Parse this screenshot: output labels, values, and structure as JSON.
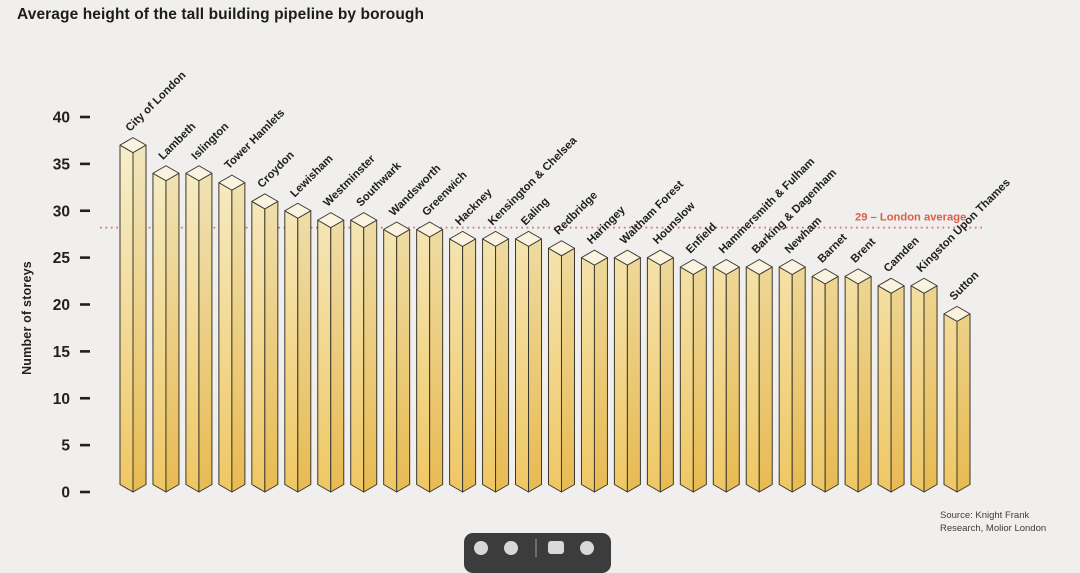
{
  "header": {
    "title": "Average height of the tall building pipeline by borough"
  },
  "chart_data": {
    "type": "bar",
    "style": "3d-column",
    "title": "Average height of the tall building pipeline by borough",
    "xlabel": "",
    "ylabel": "Number of storeys",
    "ylim": [
      0,
      40
    ],
    "yticks": [
      0,
      5,
      10,
      15,
      20,
      25,
      30,
      35,
      40
    ],
    "grid": false,
    "legend": false,
    "categories": [
      "City of London",
      "Lambeth",
      "Islington",
      "Tower Hamlets",
      "Croydon",
      "Lewisham",
      "Westminster",
      "Southwark",
      "Wandsworth",
      "Greenwich",
      "Hackney",
      "Kensington & Chelsea",
      "Ealing",
      "Redbridge",
      "Haringey",
      "Waltham Forest",
      "Hounslow",
      "Enfield",
      "Hammersmith & Fulham",
      "Barking & Dagenham",
      "Newham",
      "Barnet",
      "Brent",
      "Camden",
      "Kingston Upon Thames",
      "Sutton"
    ],
    "values": [
      37,
      34,
      34,
      33,
      31,
      30,
      29,
      29,
      28,
      28,
      27,
      27,
      27,
      26,
      25,
      25,
      25,
      24,
      24,
      24,
      24,
      23,
      23,
      22,
      22,
      19
    ],
    "average_line": {
      "value": 29,
      "label": "29 – London average"
    }
  },
  "footer": {
    "source_line1": "Source: Knight Frank",
    "source_line2": "Research, Molior London"
  },
  "toolbar": {
    "icons": [
      "circle-icon",
      "circle-icon",
      "divider",
      "square-icon",
      "circle-icon"
    ]
  },
  "colors": {
    "background": "#f0efee",
    "accent_line": "#e2755e",
    "accent_label": "#dd5c46",
    "bar_cap": "#f9f3e0",
    "bar_left_top": "#f7efcf",
    "bar_left_bottom": "#efc763",
    "bar_right_top": "#f1e7c0",
    "bar_right_bottom": "#e8ba51",
    "bar_outline": "#3a372e",
    "text": "#21201e"
  }
}
